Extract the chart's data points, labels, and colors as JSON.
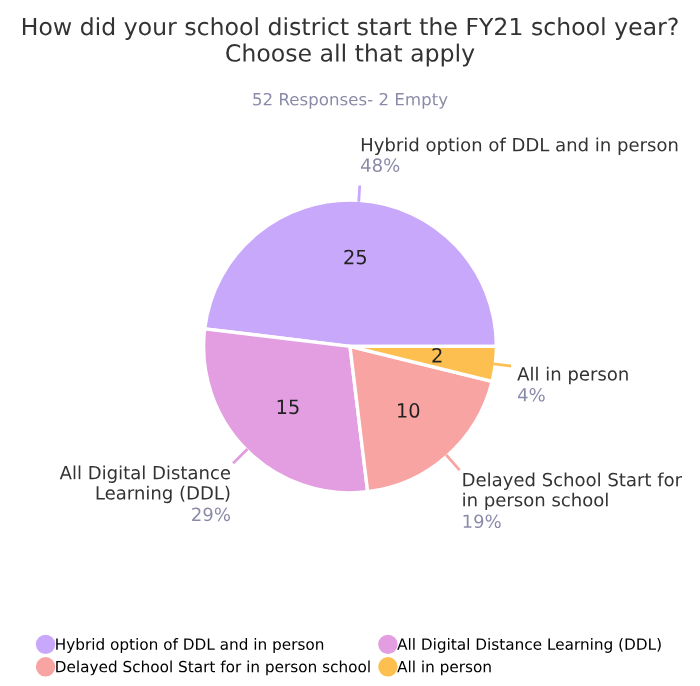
{
  "chart_data": {
    "type": "pie",
    "title": "How did your school district start the FY21 school year? Choose all that apply",
    "subtitle": "52 Responses- 2 Empty",
    "categories": [
      "Hybrid option of DDL and in person",
      "All Digital Distance Learning (DDL)",
      "Delayed School Start for in person school",
      "All in person"
    ],
    "values": [
      25,
      15,
      10,
      2
    ],
    "colors": [
      "#c8a8fb",
      "#e29ee0",
      "#f8a4a3",
      "#fdbf4f"
    ],
    "data_labels": true,
    "annotations": [
      "48%",
      "29%",
      "19%",
      "4%"
    ],
    "legend": "bottom"
  }
}
